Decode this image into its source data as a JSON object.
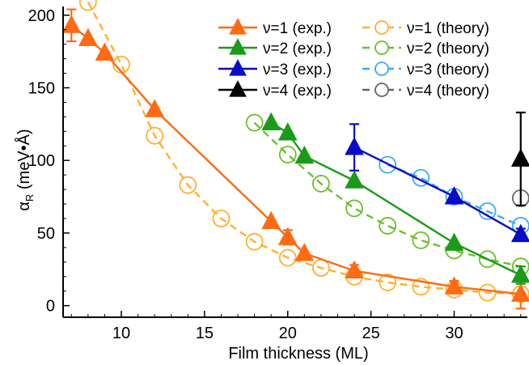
{
  "chart_data": {
    "type": "line",
    "title": "",
    "xlabel": "Film thickness (ML)",
    "ylabel_main": "α",
    "ylabel_sub": "R",
    "ylabel_units": " (meV•Å)",
    "xlim": [
      6.5,
      34.4
    ],
    "ylim": [
      -8,
      206
    ],
    "x_ticks": [
      10,
      15,
      20,
      25,
      30
    ],
    "y_ticks": [
      0,
      50,
      100,
      150,
      200
    ],
    "grid": false,
    "legend_position": "top-right",
    "colors": {
      "exp_1": "#ff6a13",
      "exp_2": "#1a9b1a",
      "exp_3": "#0a0ac8",
      "exp_4": "#000000",
      "theory_1": "#ffb030",
      "theory_2": "#6cc02a",
      "theory_3": "#3aaeea",
      "theory_4": "#666666"
    },
    "series": [
      {
        "name": "ν=1 (exp.)",
        "kind": "exp",
        "color_key": "exp_1",
        "x": [
          7,
          8,
          9,
          12,
          19,
          20,
          21,
          24,
          30,
          34
        ],
        "y": [
          193,
          184,
          174,
          135,
          58,
          47,
          36,
          24,
          13,
          8
        ],
        "err": [
          11,
          0,
          0,
          0,
          0,
          5,
          0,
          4,
          4,
          10
        ]
      },
      {
        "name": "ν=2 (exp.)",
        "kind": "exp",
        "color_key": "exp_2",
        "x": [
          19,
          20,
          21,
          24,
          30,
          34
        ],
        "y": [
          126,
          119,
          103,
          86,
          43,
          21
        ],
        "err": [
          0,
          0,
          0,
          0,
          0,
          6
        ]
      },
      {
        "name": "ν=3 (exp.)",
        "kind": "exp",
        "color_key": "exp_3",
        "x": [
          24,
          30,
          34
        ],
        "y": [
          109,
          75,
          49
        ],
        "err": [
          16,
          0,
          4
        ]
      },
      {
        "name": "ν=4 (exp.)",
        "kind": "exp",
        "color_key": "exp_4",
        "x": [
          34
        ],
        "y": [
          101
        ],
        "err": [
          32
        ]
      },
      {
        "name": "ν=1 (theory)",
        "kind": "theory",
        "color_key": "theory_1",
        "x": [
          8,
          10,
          12,
          14,
          16,
          18,
          20,
          22,
          24,
          26,
          28,
          30,
          32,
          34
        ],
        "y": [
          209,
          166,
          117,
          83,
          60,
          44,
          33,
          26,
          20,
          16,
          13,
          11,
          9,
          8
        ],
        "err": [
          0,
          0,
          0,
          0,
          0,
          0,
          0,
          0,
          0,
          0,
          0,
          0,
          0,
          0
        ]
      },
      {
        "name": "ν=2 (theory)",
        "kind": "theory",
        "color_key": "theory_2",
        "x": [
          18,
          20,
          22,
          24,
          26,
          28,
          30,
          32,
          34
        ],
        "y": [
          126,
          104,
          84,
          67,
          55,
          45,
          38,
          32,
          27
        ],
        "err": [
          0,
          0,
          0,
          0,
          0,
          0,
          0,
          0,
          0
        ]
      },
      {
        "name": "ν=3 (theory)",
        "kind": "theory",
        "color_key": "theory_3",
        "x": [
          26,
          28,
          30,
          32,
          34
        ],
        "y": [
          97,
          88,
          75,
          65,
          55
        ],
        "err": [
          0,
          0,
          0,
          0,
          0
        ]
      },
      {
        "name": "ν=4 (theory)",
        "kind": "theory",
        "color_key": "theory_4",
        "x": [
          34
        ],
        "y": [
          74
        ],
        "err": [
          0
        ]
      }
    ]
  }
}
